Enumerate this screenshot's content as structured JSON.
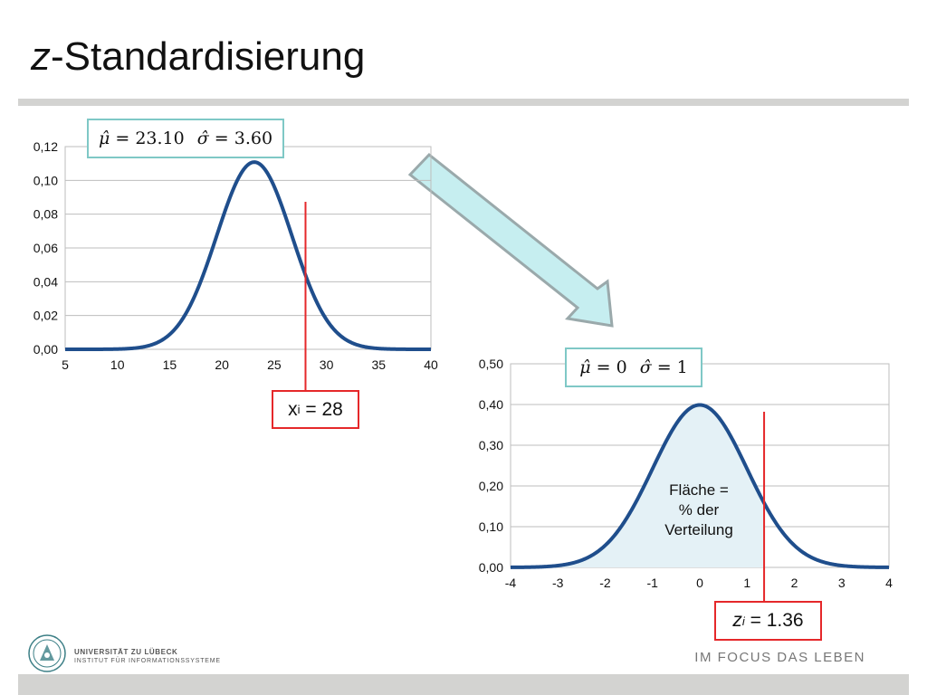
{
  "slide": {
    "title_prefix": "z",
    "title_rest": "-Standardisierung",
    "formula_raw": {
      "mu": "μ̂",
      "mu_value": "= 23.10",
      "sigma": "σ̂",
      "sigma_value": "= 3.60"
    },
    "formula_std": {
      "mu": "μ̂",
      "mu_value": "= 0",
      "sigma": "σ̂",
      "sigma_value": "= 1"
    },
    "xi_label": {
      "var": "x",
      "sub": "i",
      "value": " = 28"
    },
    "zi_label": {
      "var": "z",
      "sub": "i",
      "value": " = 1.36"
    },
    "area_label": [
      "Fläche =",
      "% der",
      "Verteilung"
    ],
    "footer": {
      "university": "UNIVERSITÄT ZU LÜBECK",
      "institute": "INSTITUT FÜR INFORMATIONSSYSTEME",
      "slogan": "IM FOCUS DAS LEBEN"
    },
    "colors": {
      "curve": "#1f4e8c",
      "marker": "#e5282a",
      "formula_border": "#7fc8c6",
      "arrow_fill": "#c6eef0",
      "arrow_stroke": "#9aa9ab",
      "area_fill": "#e4f1f6",
      "grid": "#bdbdbd",
      "rule": "#d3d3d1"
    }
  },
  "chart_data": [
    {
      "type": "line",
      "series": [
        {
          "distribution": "normal",
          "mean": 23.1,
          "sd": 3.6
        }
      ],
      "xlim": [
        5,
        40
      ],
      "ylim": [
        0,
        0.12
      ],
      "xticks": [
        "5",
        "10",
        "15",
        "20",
        "25",
        "30",
        "35",
        "40"
      ],
      "yticks": [
        "0,00",
        "0,02",
        "0,04",
        "0,06",
        "0,08",
        "0,10",
        "0,12"
      ],
      "grid": "horizontal",
      "marker_x": 28,
      "title": "",
      "xlabel": "",
      "ylabel": ""
    },
    {
      "type": "area",
      "series": [
        {
          "distribution": "normal",
          "mean": 0,
          "sd": 1
        }
      ],
      "xlim": [
        -4,
        4
      ],
      "ylim": [
        0,
        0.5
      ],
      "xticks": [
        "-4",
        "-3",
        "-2",
        "-1",
        "0",
        "1",
        "2",
        "3",
        "4"
      ],
      "yticks": [
        "0,00",
        "0,10",
        "0,20",
        "0,30",
        "0,40",
        "0,50"
      ],
      "grid": "horizontal",
      "marker_x": 1.36,
      "shaded_to": 1.36,
      "title": "",
      "xlabel": "",
      "ylabel": ""
    }
  ]
}
